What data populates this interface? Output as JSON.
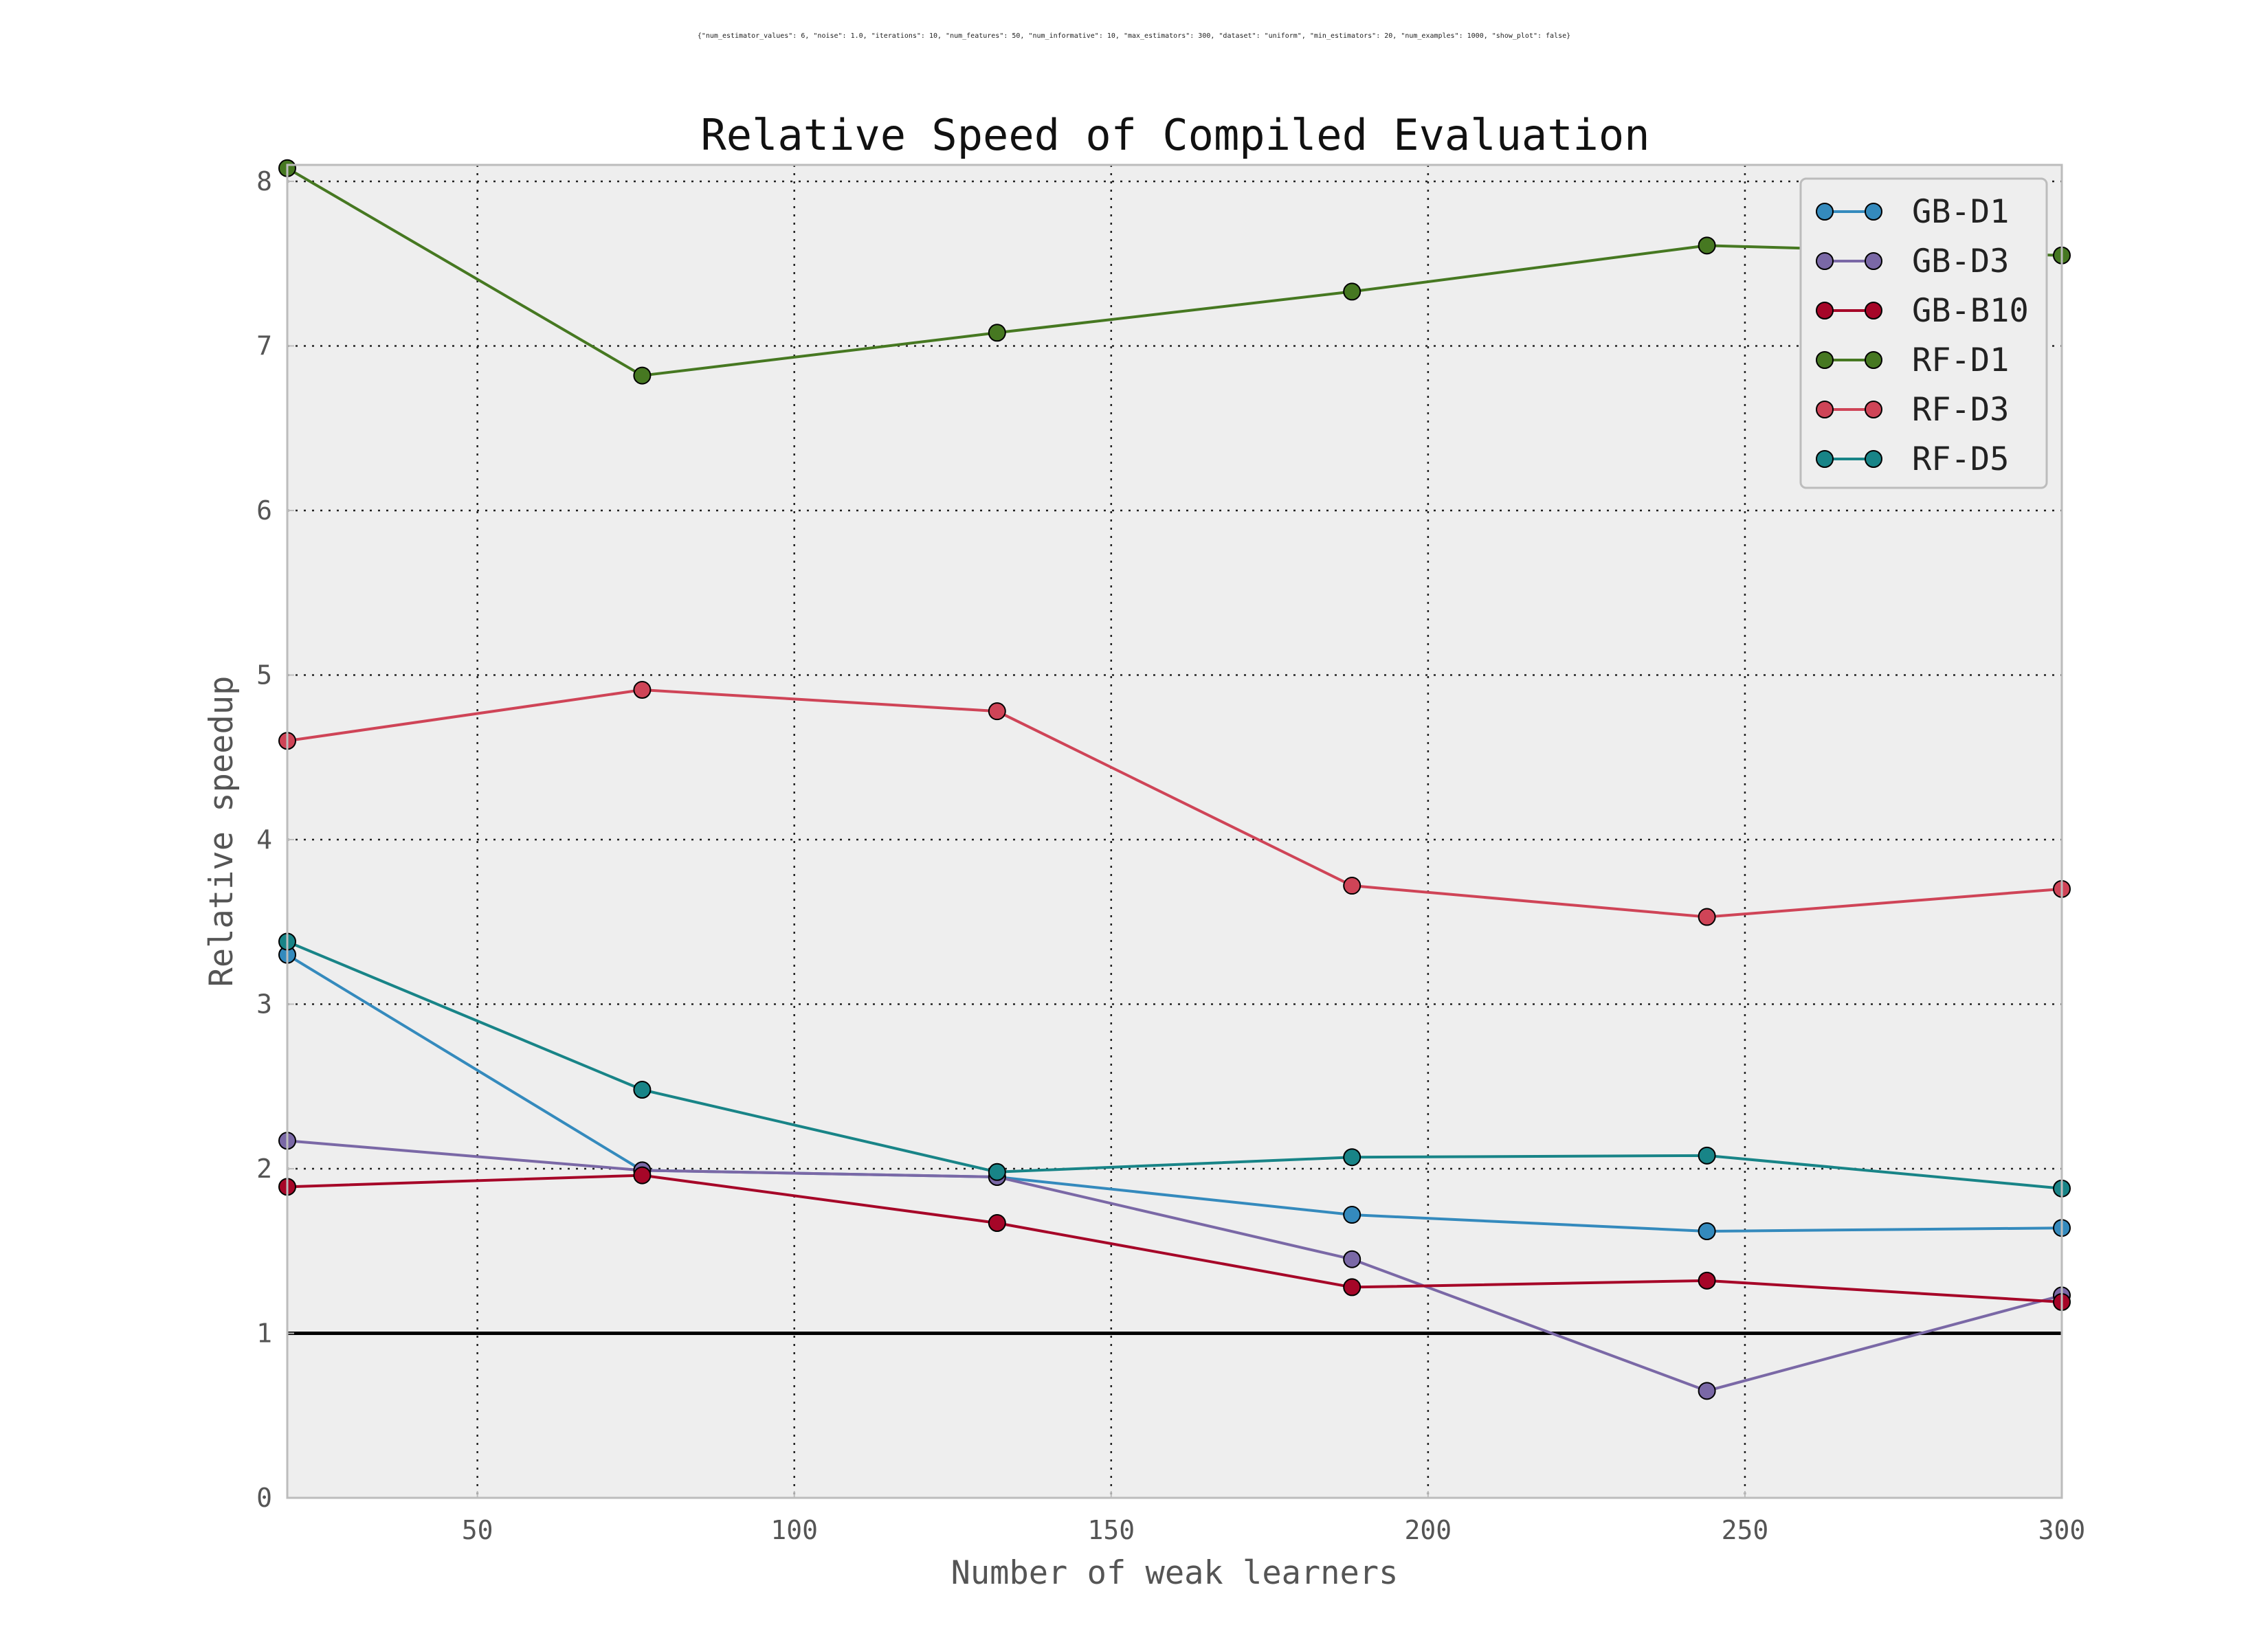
{
  "chart_data": {
    "type": "line",
    "subtitle": "{\"num_estimator_values\": 6, \"noise\": 1.0, \"iterations\": 10, \"num_features\": 50, \"num_informative\": 10, \"max_estimators\": 300, \"dataset\": \"uniform\", \"min_estimators\": 20, \"num_examples\": 1000, \"show_plot\": false}",
    "title": "Relative Speed of Compiled Evaluation",
    "xlabel": "Number of weak learners",
    "ylabel": "Relative speedup",
    "xlim": [
      20,
      300
    ],
    "ylim": [
      0,
      8.1
    ],
    "xticks": [
      50,
      100,
      150,
      200,
      250,
      300
    ],
    "yticks": [
      0,
      1,
      2,
      3,
      4,
      5,
      6,
      7,
      8
    ],
    "grid": true,
    "legend_position": "top-right",
    "reference_line": {
      "y": 1.0,
      "color": "#000000"
    },
    "x": [
      20,
      76,
      132,
      188,
      244,
      300
    ],
    "series": [
      {
        "name": "GB-D1",
        "color": "#348ABD",
        "values": [
          3.3,
          1.99,
          1.95,
          1.72,
          1.62,
          1.64
        ]
      },
      {
        "name": "GB-D3",
        "color": "#7A68A6",
        "values": [
          2.17,
          1.99,
          1.95,
          1.45,
          0.65,
          1.23
        ]
      },
      {
        "name": "GB-B10",
        "color": "#A60628",
        "values": [
          1.89,
          1.96,
          1.67,
          1.28,
          1.32,
          1.19
        ]
      },
      {
        "name": "RF-D1",
        "color": "#467821",
        "values": [
          8.08,
          6.82,
          7.08,
          7.33,
          7.61,
          7.55
        ]
      },
      {
        "name": "RF-D3",
        "color": "#CF4457",
        "values": [
          4.6,
          4.91,
          4.78,
          3.72,
          3.53,
          3.7
        ]
      },
      {
        "name": "RF-D5",
        "color": "#188487",
        "values": [
          3.38,
          2.48,
          1.98,
          2.07,
          2.08,
          1.88
        ]
      }
    ]
  }
}
